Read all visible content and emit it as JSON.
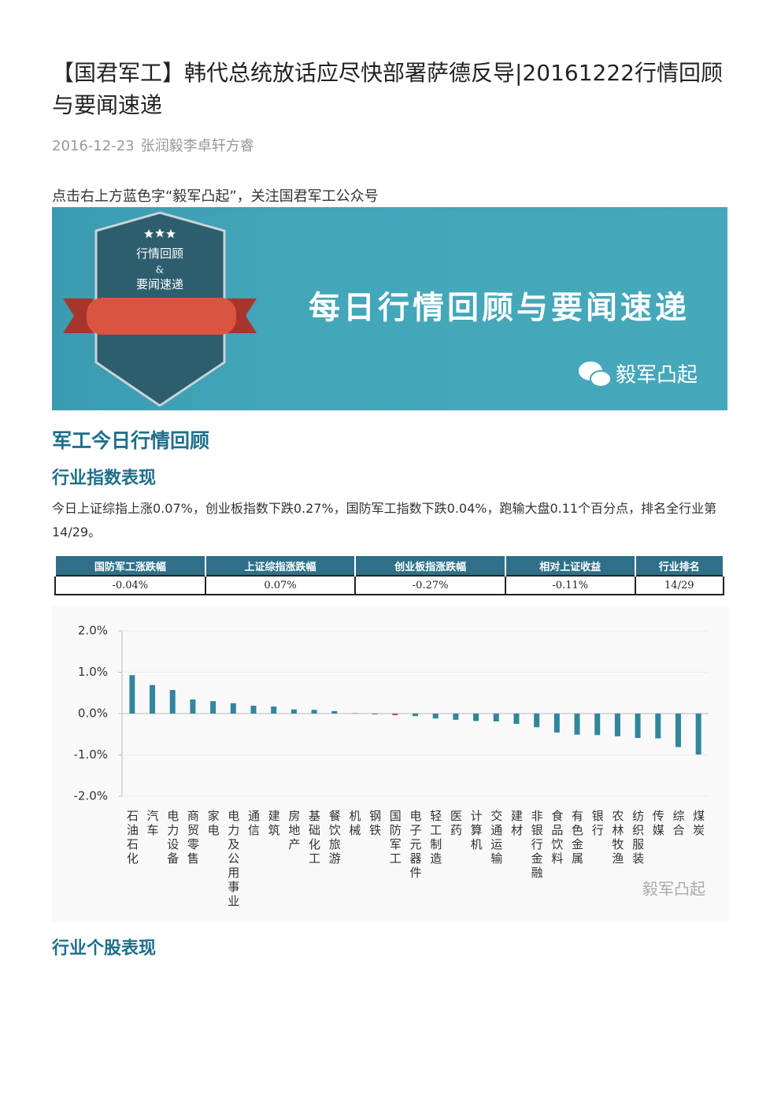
{
  "article": {
    "title": "【国君军工】韩代总统放话应尽快部署萨德反导|20161222行情回顾与要闻速递",
    "date": "2016-12-23",
    "author": "张润毅李卓轩方睿",
    "intro": "点击右上方蓝色字“毅军凸起”，关注国君军工公众号",
    "banner": {
      "badge_line1": "行情回顾",
      "badge_line2": "&",
      "badge_line3": "要闻速递",
      "headline": "每日行情回顾与要闻速递",
      "account": "毅军凸起"
    },
    "section1": "军工今日行情回顾",
    "section2": "行业指数表现",
    "paragraph": "今日上证综指上涨0.07%，创业板指数下跌0.27%，国防军工指数下跌0.04%，跑输大盘0.11个百分点，排名全行业第14/29。",
    "table": {
      "header": [
        "国防军工涨跌幅",
        "上证综指涨跌幅",
        "创业板指涨跌幅",
        "相对上证收益",
        "行业排名"
      ],
      "rows": [
        [
          "-0.04%",
          "0.07%",
          "-0.27%",
          "-0.11%",
          "14/29"
        ]
      ]
    },
    "section3": "行业个股表现"
  },
  "chart_data": {
    "type": "bar",
    "categories": [
      "石油石化",
      "汽车",
      "电力设备",
      "商贸零售",
      "家电",
      "电力及公用事业",
      "通信",
      "建筑",
      "房地产",
      "基础化工",
      "餐饮旅游",
      "机械",
      "钢铁",
      "国防军工",
      "电子元器件",
      "轻工制造",
      "医药",
      "计算机",
      "交通运输",
      "建材",
      "非银行金融",
      "食品饮料",
      "有色金属",
      "银行",
      "农林牧渔",
      "纺织服装",
      "传媒",
      "综合",
      "煤炭"
    ],
    "values": [
      0.93,
      0.69,
      0.57,
      0.34,
      0.3,
      0.25,
      0.19,
      0.17,
      0.1,
      0.09,
      0.06,
      0.01,
      -0.02,
      -0.04,
      -0.06,
      -0.12,
      -0.15,
      -0.18,
      -0.19,
      -0.25,
      -0.33,
      -0.46,
      -0.51,
      -0.52,
      -0.55,
      -0.59,
      -0.6,
      -0.81,
      -0.99
    ],
    "colors": [
      "#31869b",
      "#31869b",
      "#31869b",
      "#31869b",
      "#31869b",
      "#31869b",
      "#31869b",
      "#31869b",
      "#31869b",
      "#31869b",
      "#31869b",
      "#31869b",
      "#31869b",
      "#c0504d",
      "#31869b",
      "#31869b",
      "#31869b",
      "#31869b",
      "#31869b",
      "#31869b",
      "#31869b",
      "#31869b",
      "#31869b",
      "#31869b",
      "#31869b",
      "#31869b",
      "#31869b",
      "#31869b",
      "#31869b"
    ],
    "ylim": [
      -2,
      2
    ],
    "yticks": [
      {
        "value": 2,
        "label": "2.0%"
      },
      {
        "value": 1,
        "label": "1.0%"
      },
      {
        "value": 0,
        "label": "0.0%"
      },
      {
        "value": -1,
        "label": "-1.0%"
      },
      {
        "value": -2,
        "label": "-2.0%"
      }
    ],
    "grid": true,
    "watermark": "毅军凸起"
  }
}
